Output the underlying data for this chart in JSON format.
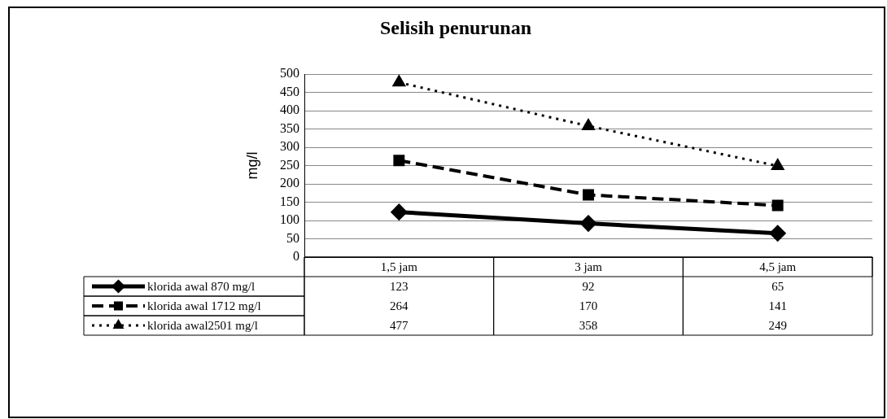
{
  "chart_data": {
    "type": "line",
    "title": "Selisih penurunan",
    "ylabel": "mg/l",
    "categories": [
      "1,5 jam",
      "3 jam",
      "4,5 jam"
    ],
    "series": [
      {
        "name": "klorida awal 870 mg/l",
        "color": "#000000",
        "values": [
          123,
          92,
          65
        ],
        "marker": "diamond",
        "line_style": "solid"
      },
      {
        "name": "klorida awal 1712 mg/l",
        "color": "#000000",
        "values": [
          264,
          170,
          141
        ],
        "marker": "square",
        "line_style": "dashed"
      },
      {
        "name": "klorida awal2501 mg/l",
        "color": "#000000",
        "values": [
          477,
          358,
          249
        ],
        "marker": "triangle",
        "line_style": "dotted"
      }
    ],
    "ylim": [
      0,
      500
    ],
    "yticks": [
      0,
      50,
      100,
      150,
      200,
      250,
      300,
      350,
      400,
      450,
      500
    ],
    "grid": "y",
    "legend": "bottom",
    "data_labels": true
  }
}
